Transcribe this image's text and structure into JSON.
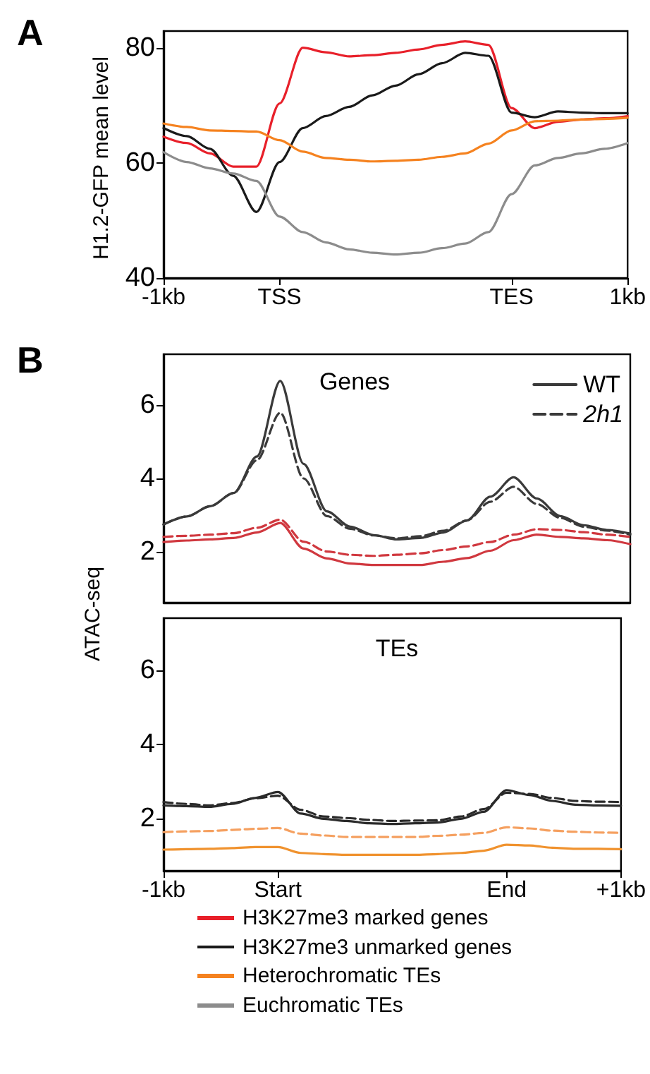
{
  "chart_data": [
    {
      "type": "line",
      "title": "A",
      "ylabel": "H1.2-GFP mean level",
      "categories": [
        "-1kb",
        null,
        null,
        null,
        null,
        "TSS",
        null,
        null,
        null,
        null,
        null,
        null,
        null,
        null,
        null,
        "TES",
        null,
        null,
        null,
        null,
        "1kb"
      ],
      "ylim": [
        40,
        83
      ],
      "yticks": [
        40,
        60,
        80
      ],
      "grid": false,
      "legend": "bottom",
      "marker": "none",
      "series": [
        {
          "name": "H3K27me3 marked genes",
          "color": "#e8202a",
          "values": [
            64.6,
            63.5,
            61.7,
            59.4,
            59.4,
            70.4,
            80.1,
            79.3,
            78.6,
            78.8,
            79.2,
            79.8,
            80.6,
            81.2,
            80.6,
            69.6,
            66.1,
            67.2,
            67.6,
            67.8,
            68.2
          ]
        },
        {
          "name": "H3K27me3 unmarked genes",
          "color": "#1a1a1a",
          "values": [
            66.1,
            64.7,
            62.5,
            57.8,
            51.5,
            60.2,
            66.1,
            68.2,
            69.8,
            71.8,
            73.5,
            75.5,
            77.4,
            79.2,
            78.7,
            68.8,
            68,
            69,
            68.8,
            68.7,
            68.7
          ]
        },
        {
          "name": "Heterochromatic TEs",
          "color": "#f5821f",
          "values": [
            66.9,
            66.3,
            65.7,
            65.6,
            65.5,
            64,
            62,
            60.9,
            60.6,
            60.3,
            60.4,
            60.6,
            61.1,
            61.7,
            63.4,
            65.7,
            67.3,
            67.4,
            67.6,
            67.7,
            67.9
          ]
        },
        {
          "name": "Euchromatic TEs",
          "color": "#8c8c8c",
          "values": [
            61.9,
            60.2,
            59.1,
            58.2,
            56.9,
            50.7,
            48,
            46.2,
            45,
            44.4,
            44.1,
            44.4,
            45.2,
            46,
            48,
            54.6,
            59.6,
            60.9,
            61.7,
            62.5,
            63.5
          ]
        }
      ]
    },
    {
      "type": "line",
      "title": "B",
      "subtitle": "Genes",
      "ylabel": "ATAC-seq",
      "categories": [
        null,
        null,
        null,
        null,
        null,
        null,
        null,
        null,
        null,
        null,
        null,
        null,
        null,
        null,
        null,
        null,
        null,
        null,
        null,
        null,
        null
      ],
      "ylim": [
        0.6,
        7.4
      ],
      "yticks": [
        2,
        4,
        6
      ],
      "grid": false,
      "legend": "top right",
      "marker": "none",
      "tick_labels": "y",
      "series": [
        {
          "name": "WT",
          "color": "#3a3a3a",
          "line_style": "solid",
          "values": [
            2.74,
            2.96,
            3.24,
            3.6,
            4.6,
            6.67,
            4.4,
            3.1,
            2.68,
            2.45,
            2.33,
            2.37,
            2.52,
            2.85,
            3.5,
            4.03,
            3.45,
            2.97,
            2.72,
            2.59,
            2.49
          ]
        },
        {
          "name": "2h1",
          "color": "#3a3a3a",
          "line_style": "dashed",
          "values": [
            2.74,
            2.96,
            3.24,
            3.6,
            4.5,
            5.8,
            4.0,
            2.97,
            2.62,
            2.44,
            2.36,
            2.42,
            2.57,
            2.85,
            3.36,
            3.77,
            3.3,
            2.92,
            2.68,
            2.57,
            2.46
          ]
        },
        {
          "color": "#d0383f",
          "line_style": "solid",
          "values": [
            2.26,
            2.3,
            2.33,
            2.37,
            2.52,
            2.78,
            2.08,
            1.81,
            1.67,
            1.63,
            1.63,
            1.63,
            1.72,
            1.82,
            2.02,
            2.31,
            2.46,
            2.4,
            2.36,
            2.31,
            2.2
          ]
        },
        {
          "color": "#d0383f",
          "line_style": "dashed",
          "values": [
            2.4,
            2.43,
            2.46,
            2.5,
            2.65,
            2.87,
            2.27,
            2.0,
            1.91,
            1.88,
            1.91,
            1.95,
            2.04,
            2.14,
            2.26,
            2.46,
            2.61,
            2.59,
            2.53,
            2.46,
            2.4
          ]
        }
      ]
    },
    {
      "type": "line",
      "title": "TEs",
      "categories": [
        "-1kb",
        null,
        null,
        null,
        null,
        "Start",
        null,
        null,
        null,
        null,
        null,
        null,
        null,
        null,
        null,
        "End",
        null,
        null,
        null,
        null,
        "+1kb"
      ],
      "ylim": [
        0.6,
        7.4
      ],
      "yticks": [
        2,
        4,
        6
      ],
      "grid": false,
      "legend": false,
      "marker": "none",
      "series": [
        {
          "color": "#2a2a2a",
          "line_style": "solid",
          "values": [
            2.36,
            2.34,
            2.32,
            2.4,
            2.56,
            2.72,
            2.14,
            2.0,
            1.94,
            1.88,
            1.86,
            1.88,
            1.9,
            2.0,
            2.19,
            2.77,
            2.64,
            2.48,
            2.38,
            2.36,
            2.35
          ]
        },
        {
          "color": "#2a2a2a",
          "line_style": "dashed",
          "values": [
            2.45,
            2.4,
            2.36,
            2.42,
            2.55,
            2.62,
            2.24,
            2.06,
            2.02,
            1.97,
            1.94,
            1.95,
            1.96,
            2.06,
            2.26,
            2.7,
            2.67,
            2.56,
            2.48,
            2.46,
            2.45
          ]
        },
        {
          "color": "#f5a060",
          "line_style": "dashed",
          "values": [
            1.64,
            1.66,
            1.67,
            1.7,
            1.73,
            1.75,
            1.6,
            1.55,
            1.51,
            1.51,
            1.51,
            1.51,
            1.54,
            1.57,
            1.62,
            1.77,
            1.74,
            1.68,
            1.65,
            1.63,
            1.62
          ]
        },
        {
          "color": "#f0922e",
          "line_style": "solid",
          "values": [
            1.17,
            1.18,
            1.19,
            1.21,
            1.24,
            1.24,
            1.08,
            1.05,
            1.03,
            1.03,
            1.03,
            1.03,
            1.05,
            1.08,
            1.14,
            1.3,
            1.28,
            1.22,
            1.19,
            1.19,
            1.18
          ]
        }
      ]
    }
  ]
}
